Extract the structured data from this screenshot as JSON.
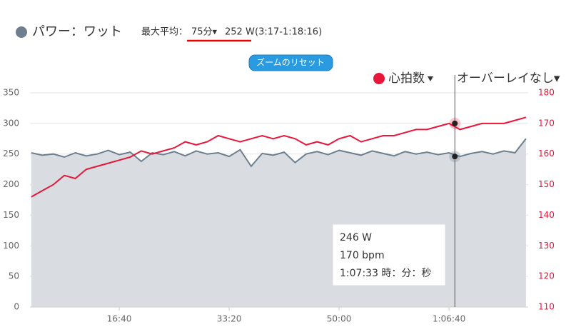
{
  "chart_data": {
    "type": "line",
    "header": {
      "label": "最大平均：",
      "duration": "75分▾",
      "value": "252 W",
      "range": "(3:17-1:18:16)"
    },
    "reset_button": "ズームのリセット",
    "overlay": "オーバーレイなし▾",
    "x": [
      200,
      300,
      400,
      500,
      600,
      700,
      800,
      900,
      1000,
      1100,
      1200,
      1300,
      1400,
      1500,
      1600,
      1700,
      1800,
      1900,
      2000,
      2100,
      2200,
      2300,
      2400,
      2500,
      2600,
      2700,
      2800,
      2900,
      3000,
      3100,
      3200,
      3300,
      3400,
      3500,
      3600,
      3700,
      3800,
      3900,
      4000,
      4100,
      4200,
      4300,
      4400,
      4500,
      4600,
      4700
    ],
    "series": [
      {
        "name": "パワー：ワット",
        "color": "#6d7f8e",
        "values": [
          252,
          248,
          250,
          245,
          252,
          247,
          250,
          256,
          249,
          253,
          238,
          252,
          249,
          254,
          247,
          255,
          250,
          252,
          246,
          257,
          230,
          251,
          248,
          253,
          236,
          250,
          254,
          249,
          256,
          252,
          248,
          255,
          251,
          247,
          254,
          250,
          253,
          249,
          252,
          246,
          251,
          254,
          250,
          255,
          252,
          275
        ]
      },
      {
        "name": "心拍数",
        "color": "#e8173a",
        "axis": "y2",
        "values": [
          146,
          148,
          150,
          153,
          152,
          155,
          156,
          157,
          158,
          159,
          161,
          160,
          161,
          162,
          164,
          163,
          164,
          166,
          165,
          164,
          165,
          166,
          165,
          166,
          165,
          163,
          164,
          163,
          165,
          166,
          164,
          165,
          166,
          166,
          167,
          168,
          168,
          169,
          170,
          168,
          169,
          170,
          170,
          170,
          171,
          172
        ]
      }
    ],
    "xlim": [
      188,
      4720
    ],
    "xticks": [
      {
        "value": 1000,
        "label": "16:40"
      },
      {
        "value": 2000,
        "label": "33:20"
      },
      {
        "value": 3000,
        "label": "50:00"
      },
      {
        "value": 4000,
        "label": "1:06:40"
      }
    ],
    "ylim": [
      0,
      350
    ],
    "yticks": [
      0,
      50,
      100,
      150,
      200,
      250,
      300,
      350
    ],
    "y2lim": [
      110,
      180
    ],
    "y2ticks": [
      110,
      120,
      130,
      140,
      150,
      160,
      170,
      180
    ],
    "grid": true,
    "tooltip": {
      "x": 4053,
      "x_label": "1:07:33 時：分：秒",
      "values": [
        246,
        170
      ],
      "value_labels": [
        "246 W",
        "170 bpm"
      ]
    }
  }
}
